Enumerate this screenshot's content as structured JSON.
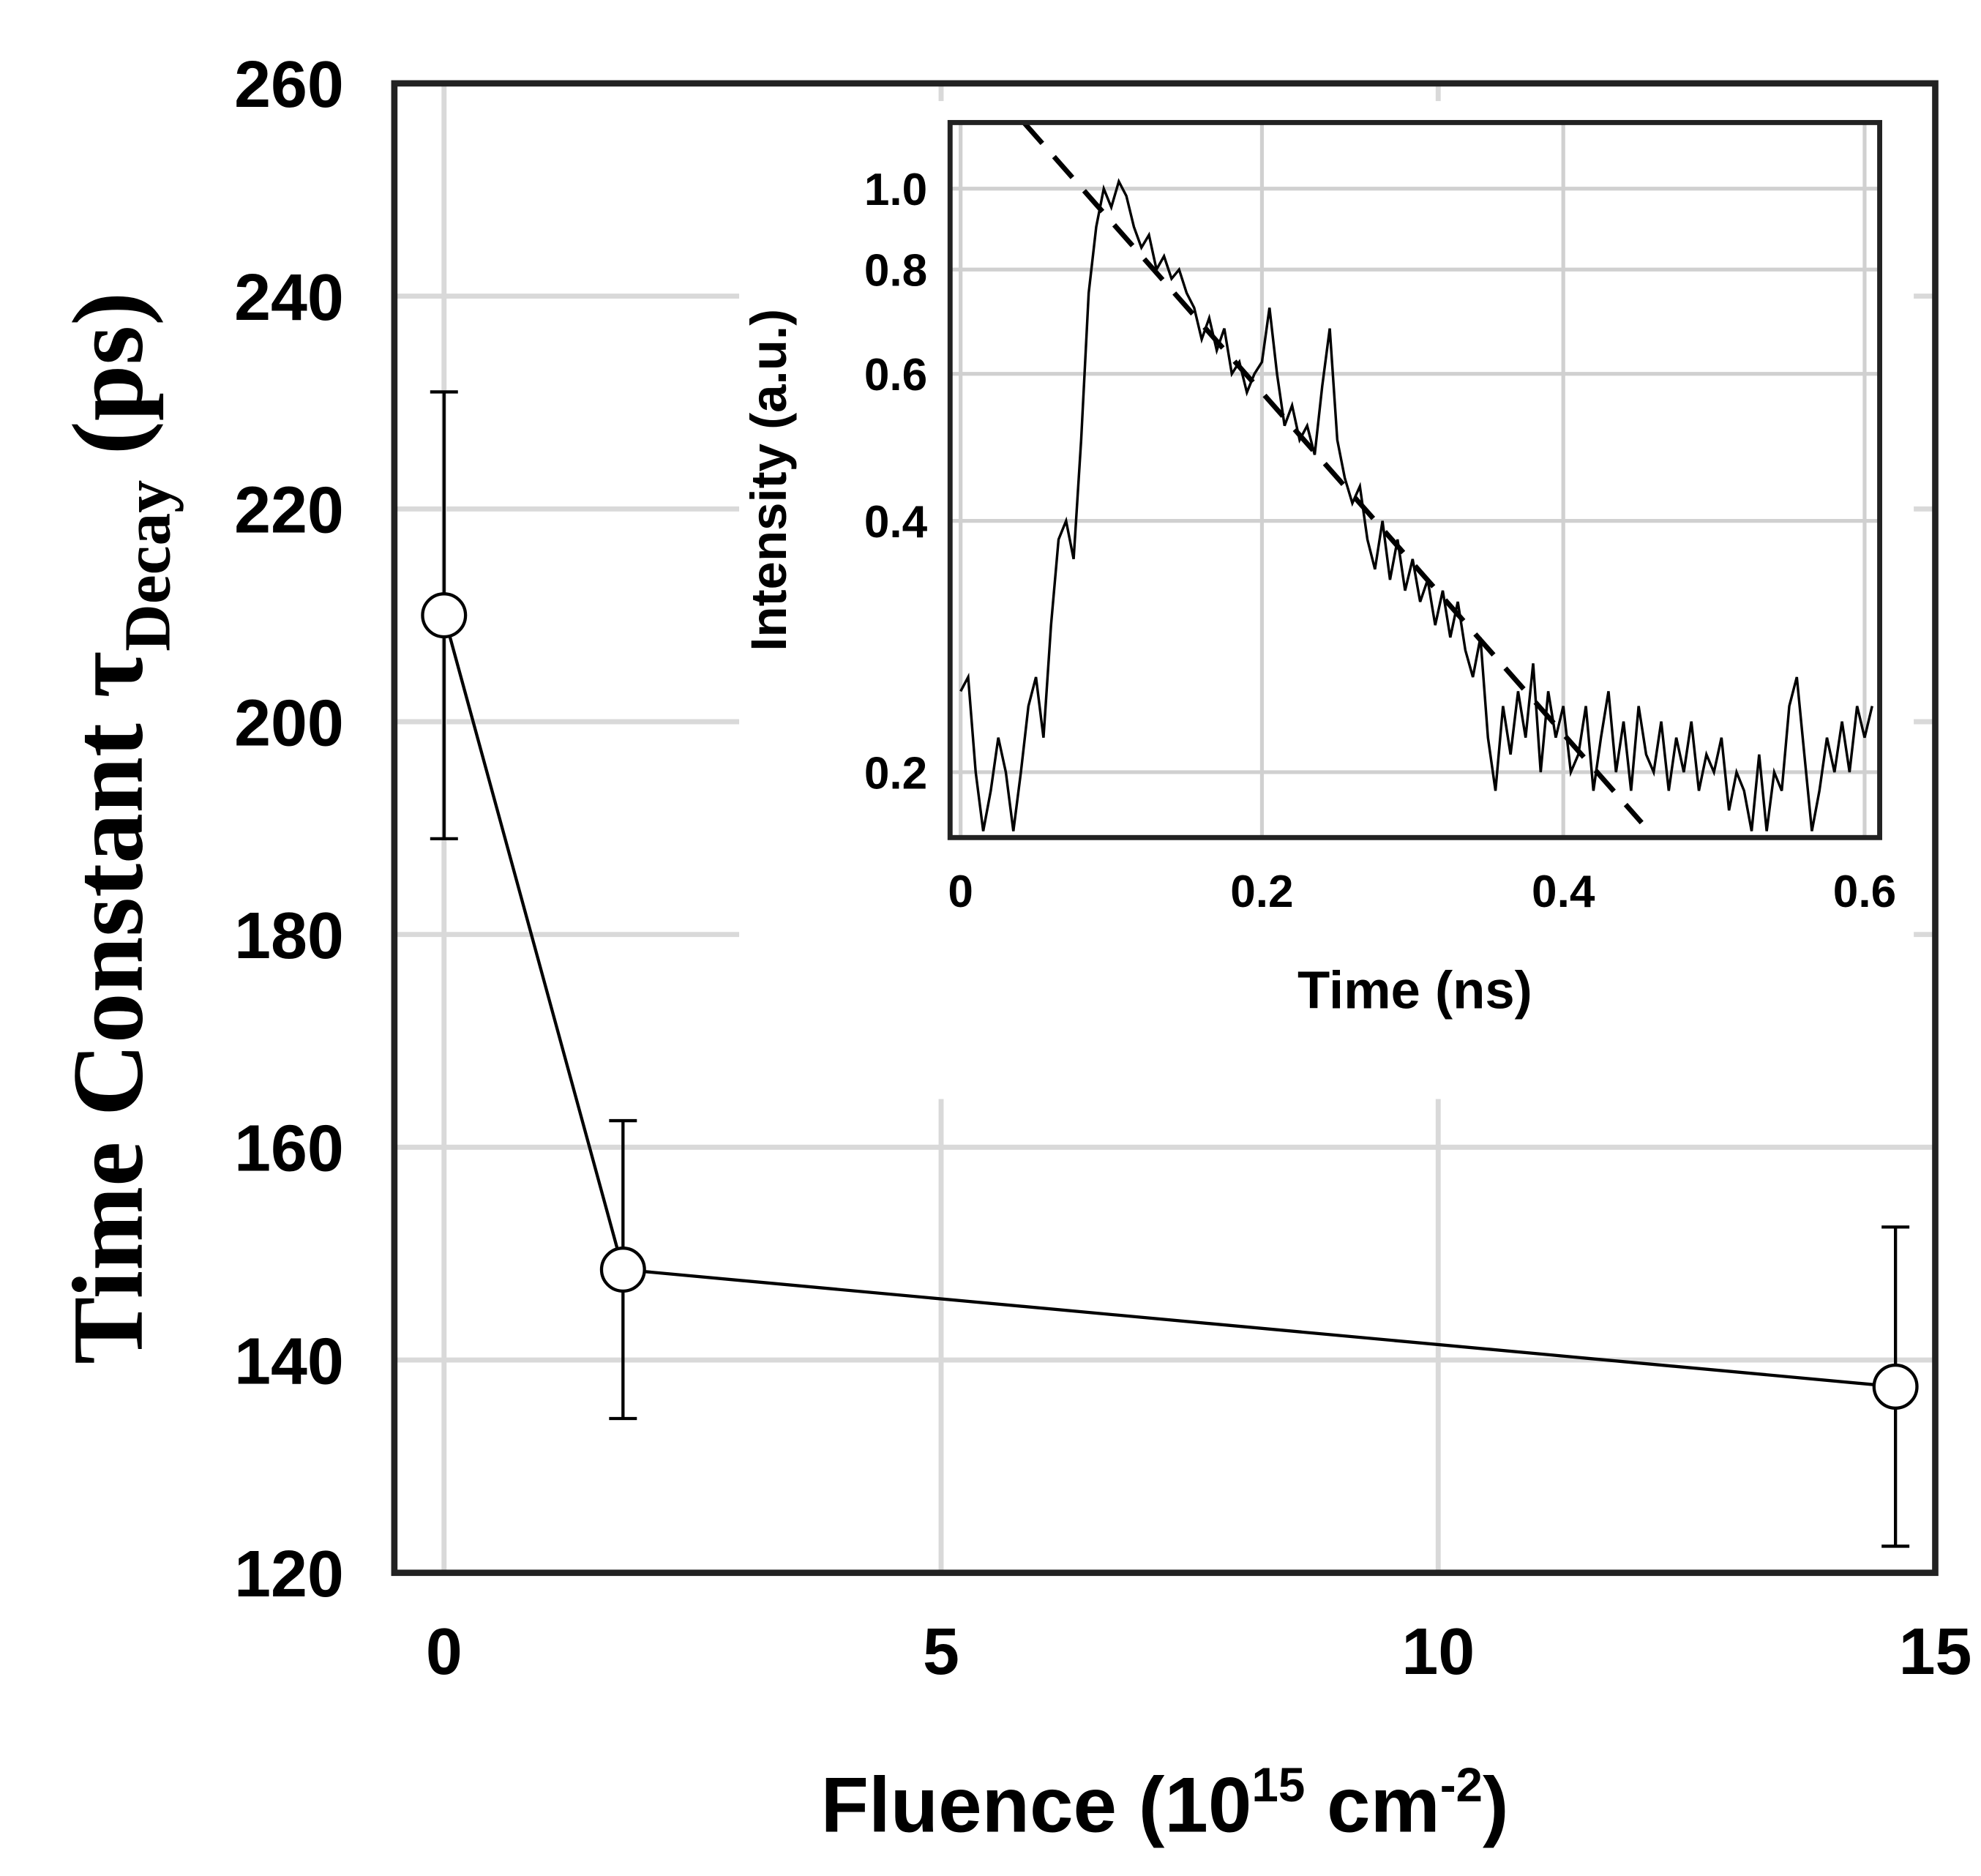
{
  "chart_data": [
    {
      "type": "line",
      "ylabel": [
        "Time Constant τ",
        "Decay",
        " (ps)"
      ],
      "xlabel": [
        "Fluence (10",
        "15",
        " cm",
        "-2",
        ")"
      ],
      "x": [
        0,
        1.8,
        14.6
      ],
      "series": [
        {
          "color": "#000000",
          "values": [
            210,
            148.5,
            137.5
          ],
          "errors": [
            21,
            14,
            15
          ]
        }
      ],
      "xlim": [
        -0.5,
        15
      ],
      "ylim": [
        120,
        260
      ],
      "xticks": [
        0,
        5,
        10,
        15
      ],
      "yticks": [
        120,
        140,
        160,
        180,
        200,
        220,
        240,
        260
      ],
      "grid": true
    },
    {
      "type": "line",
      "ylabel": "Intensity (a.u.)",
      "xlabel": "Time (ns)",
      "ylog": true,
      "xlim": [
        -0.007,
        0.61
      ],
      "ylim": [
        0.167,
        1.2
      ],
      "xticks": [
        0,
        0.2,
        0.4,
        0.6
      ],
      "yticks": [
        0.2,
        0.4,
        0.6,
        0.8,
        {
          "value": 1,
          "label": "1.0"
        }
      ],
      "grid": true,
      "series": [
        {
          "color": "#000000",
          "linestyle": "solid",
          "x": [
            0,
            0.005,
            0.01,
            0.015,
            0.02,
            0.025,
            0.03,
            0.035,
            0.04,
            0.045,
            0.05,
            0.055,
            0.06,
            0.065,
            0.07,
            0.075,
            0.08,
            0.085,
            0.09,
            0.095,
            0.1,
            0.105,
            0.11,
            0.115,
            0.12,
            0.125,
            0.13,
            0.135,
            0.14,
            0.145,
            0.15,
            0.155,
            0.16,
            0.165,
            0.17,
            0.175,
            0.18,
            0.185,
            0.19,
            0.195,
            0.2,
            0.205,
            0.21,
            0.215,
            0.22,
            0.225,
            0.23,
            0.235,
            0.24,
            0.245,
            0.25,
            0.255,
            0.26,
            0.265,
            0.27,
            0.275,
            0.28,
            0.285,
            0.29,
            0.295,
            0.3,
            0.305,
            0.31,
            0.315,
            0.32,
            0.325,
            0.33,
            0.335,
            0.34,
            0.345,
            0.35,
            0.355,
            0.36,
            0.365,
            0.37,
            0.375,
            0.38,
            0.385,
            0.39,
            0.395,
            0.4,
            0.405,
            0.41,
            0.415,
            0.42,
            0.425,
            0.43,
            0.435,
            0.44,
            0.445,
            0.45,
            0.455,
            0.46,
            0.465,
            0.47,
            0.475,
            0.48,
            0.485,
            0.49,
            0.495,
            0.5,
            0.505,
            0.51,
            0.515,
            0.52,
            0.525,
            0.53,
            0.535,
            0.54,
            0.545,
            0.55,
            0.555,
            0.56,
            0.565,
            0.57,
            0.575,
            0.58,
            0.585,
            0.59,
            0.595,
            0.6,
            0.605
          ],
          "values": [
            0.25,
            0.26,
            0.2,
            0.17,
            0.19,
            0.22,
            0.2,
            0.17,
            0.2,
            0.24,
            0.26,
            0.22,
            0.3,
            0.38,
            0.4,
            0.36,
            0.5,
            0.75,
            0.9,
            1.0,
            0.95,
            1.02,
            0.98,
            0.9,
            0.85,
            0.88,
            0.8,
            0.83,
            0.78,
            0.8,
            0.75,
            0.72,
            0.66,
            0.7,
            0.64,
            0.68,
            0.6,
            0.62,
            0.57,
            0.6,
            0.62,
            0.72,
            0.6,
            0.52,
            0.55,
            0.5,
            0.52,
            0.48,
            0.58,
            0.68,
            0.5,
            0.45,
            0.42,
            0.44,
            0.38,
            0.35,
            0.4,
            0.34,
            0.38,
            0.33,
            0.36,
            0.32,
            0.34,
            0.3,
            0.33,
            0.29,
            0.32,
            0.28,
            0.26,
            0.29,
            0.22,
            0.19,
            0.24,
            0.21,
            0.25,
            0.22,
            0.27,
            0.2,
            0.25,
            0.22,
            0.24,
            0.2,
            0.21,
            0.24,
            0.19,
            0.22,
            0.25,
            0.2,
            0.23,
            0.19,
            0.24,
            0.21,
            0.2,
            0.23,
            0.19,
            0.22,
            0.2,
            0.23,
            0.19,
            0.21,
            0.2,
            0.22,
            0.18,
            0.2,
            0.19,
            0.17,
            0.21,
            0.17,
            0.2,
            0.19,
            0.24,
            0.26,
            0.21,
            0.17,
            0.19,
            0.22,
            0.2,
            0.23,
            0.2,
            0.24,
            0.22,
            0.24
          ]
        },
        {
          "color": "#000000",
          "linestyle": "dashed",
          "x": [
            0.042,
            0.452
          ],
          "values": [
            1.2,
            0.174
          ]
        }
      ]
    }
  ]
}
